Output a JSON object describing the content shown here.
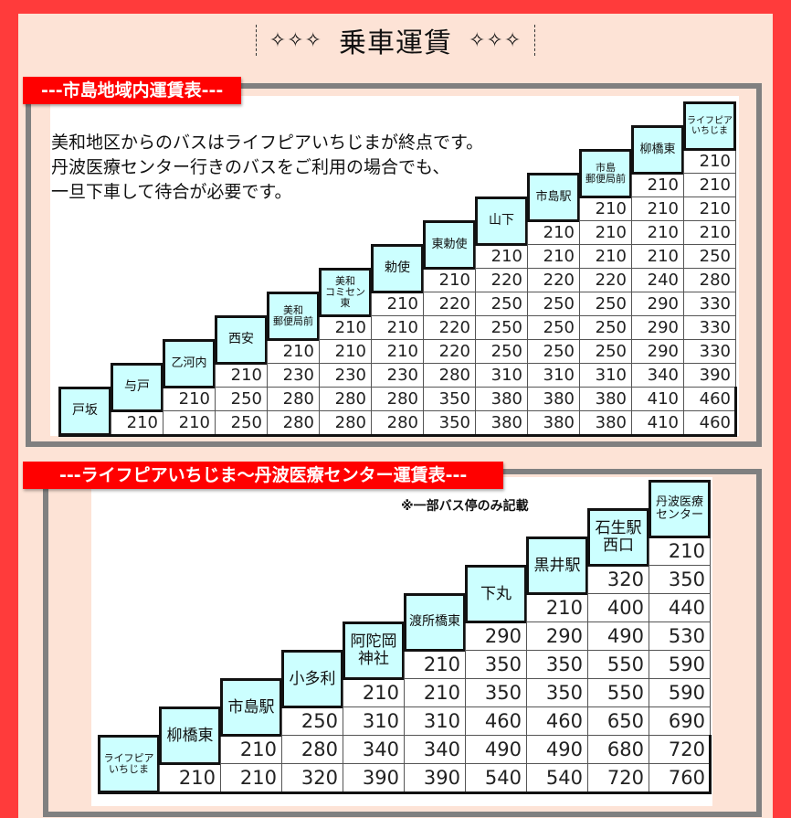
{
  "page_title": "乗車運賃",
  "title_stars": "✧✧✧",
  "section1": {
    "banner": "---市島地域内運賃表---",
    "note_lines": [
      "美和地区からのバスはライフピアいちじまが終点です。",
      "丹波医療センター行きのバスをご利用の場合でも、",
      "一旦下車して待合が必要です。"
    ],
    "stations": [
      "戸坂",
      "与戸",
      "乙河内",
      "西安",
      "美和\n郵便局前",
      "美和\nコミセン東",
      "勅使",
      "東勅使",
      "山下",
      "市島駅",
      "市島\n郵便局前",
      "柳橋東",
      "ライフピア\nいちじま"
    ],
    "columns": [
      [],
      [
        210
      ],
      [
        210,
        210
      ],
      [
        210,
        250,
        250
      ],
      [
        210,
        230,
        280,
        280
      ],
      [
        210,
        210,
        230,
        280,
        280
      ],
      [
        210,
        210,
        210,
        230,
        280,
        280
      ],
      [
        210,
        220,
        220,
        220,
        280,
        350,
        350
      ],
      [
        210,
        220,
        250,
        250,
        250,
        310,
        380,
        380
      ],
      [
        210,
        210,
        220,
        250,
        250,
        250,
        310,
        380,
        380
      ],
      [
        210,
        210,
        210,
        220,
        250,
        250,
        250,
        310,
        380,
        380
      ],
      [
        210,
        210,
        210,
        210,
        240,
        290,
        290,
        290,
        340,
        410,
        410
      ],
      [
        210,
        210,
        210,
        210,
        250,
        280,
        330,
        330,
        330,
        390,
        460,
        460
      ]
    ]
  },
  "section2": {
    "banner": "---ライフピアいちじま～丹波医療センター運賃表---",
    "note": "※一部バス停のみ記載",
    "stations": [
      "ライフピア\nいちじま",
      "柳橋東",
      "市島駅",
      "小多利",
      "阿陀岡\n神社",
      "渡所橋東",
      "下丸",
      "黒井駅",
      "石生駅\n西口",
      "丹波医療\nセンター"
    ],
    "columns": [
      [],
      [
        210
      ],
      [
        210,
        210
      ],
      [
        250,
        280,
        320
      ],
      [
        210,
        310,
        340,
        390
      ],
      [
        210,
        210,
        310,
        340,
        390
      ],
      [
        290,
        350,
        350,
        460,
        490,
        540
      ],
      [
        210,
        290,
        350,
        350,
        460,
        490,
        540
      ],
      [
        320,
        400,
        490,
        550,
        550,
        650,
        680,
        720
      ],
      [
        210,
        350,
        440,
        530,
        590,
        590,
        690,
        720,
        760
      ]
    ]
  }
}
